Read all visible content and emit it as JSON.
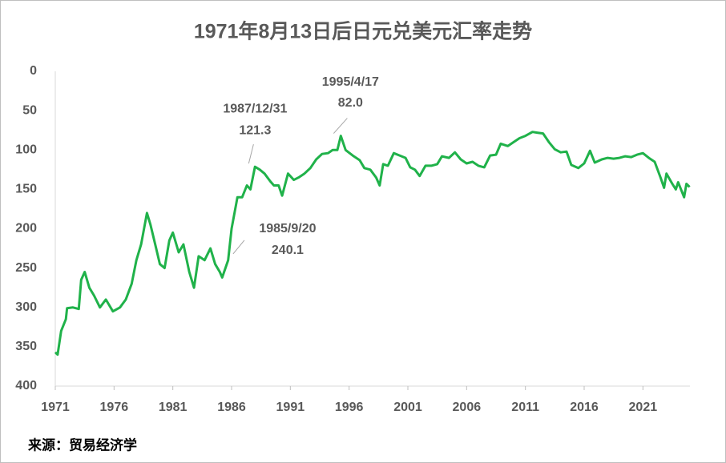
{
  "chart_data": {
    "type": "line",
    "title": "1971年8月13日后日元兑美元汇率走势",
    "source": "来源：贸易经济学",
    "xlim": [
      1971,
      2025
    ],
    "xticks": [
      1971,
      1976,
      1981,
      1986,
      1991,
      1996,
      2001,
      2006,
      2011,
      2016,
      2021
    ],
    "ylim": [
      0,
      400
    ],
    "y_reversed": true,
    "yticks": [
      0,
      50,
      100,
      150,
      200,
      250,
      300,
      350,
      400
    ],
    "grid": false,
    "series": [
      {
        "color": "#20b24a",
        "x": [
          1971.0,
          1971.2,
          1971.5,
          1971.9,
          1972.0,
          1972.5,
          1973.0,
          1973.2,
          1973.5,
          1973.9,
          1974.3,
          1974.8,
          1975.3,
          1975.9,
          1976.5,
          1977.0,
          1977.5,
          1977.9,
          1978.3,
          1978.8,
          1979.1,
          1979.5,
          1979.9,
          1980.3,
          1980.7,
          1981.0,
          1981.5,
          1981.9,
          1982.4,
          1982.8,
          1983.2,
          1983.7,
          1984.2,
          1984.6,
          1985.0,
          1985.2,
          1985.71,
          1986.0,
          1986.5,
          1986.9,
          1987.3,
          1987.6,
          1987.99,
          1988.4,
          1988.8,
          1989.3,
          1989.6,
          1990.0,
          1990.3,
          1990.8,
          1991.3,
          1991.7,
          1992.2,
          1992.7,
          1993.2,
          1993.7,
          1994.2,
          1994.6,
          1995.0,
          1995.29,
          1995.7,
          1996.3,
          1996.9,
          1997.3,
          1997.8,
          1998.3,
          1998.6,
          1998.9,
          1999.3,
          1999.8,
          2000.3,
          2000.8,
          2001.2,
          2001.6,
          2002.0,
          2002.5,
          2003.0,
          2003.5,
          2003.9,
          2004.5,
          2005.0,
          2005.5,
          2006.0,
          2006.5,
          2007.0,
          2007.5,
          2008.0,
          2008.5,
          2008.9,
          2009.5,
          2010.0,
          2010.5,
          2011.0,
          2011.6,
          2012.0,
          2012.5,
          2013.0,
          2013.5,
          2014.0,
          2014.5,
          2014.9,
          2015.5,
          2016.0,
          2016.5,
          2016.9,
          2017.5,
          2018.0,
          2018.5,
          2019.0,
          2019.5,
          2020.0,
          2020.5,
          2021.0,
          2021.5,
          2022.0,
          2022.5,
          2022.8,
          2023.0,
          2023.5,
          2023.8,
          2024.0,
          2024.5,
          2024.7,
          2024.97
        ],
        "values": [
          357,
          360,
          330,
          315,
          301,
          300,
          302,
          265,
          255,
          275,
          285,
          300,
          290,
          305,
          300,
          290,
          270,
          240,
          220,
          180,
          195,
          220,
          245,
          250,
          215,
          205,
          230,
          220,
          255,
          275,
          235,
          240,
          225,
          245,
          255,
          262,
          240.1,
          200,
          160,
          160,
          145,
          150,
          121.3,
          125,
          130,
          140,
          145,
          145,
          158,
          130,
          138,
          135,
          130,
          123,
          112,
          105,
          104,
          100,
          100,
          82.0,
          100,
          107,
          113,
          123,
          125,
          135,
          145,
          118,
          120,
          104,
          107,
          110,
          122,
          125,
          133,
          120,
          120,
          118,
          108,
          110,
          103,
          112,
          117,
          115,
          120,
          122,
          107,
          106,
          92,
          95,
          90,
          85,
          82,
          77,
          78,
          79,
          90,
          99,
          103,
          102,
          119,
          123,
          117,
          101,
          116,
          112,
          110,
          111,
          110,
          108,
          109,
          106,
          104,
          110,
          115,
          135,
          148,
          130,
          143,
          150,
          141,
          160,
          143,
          147
        ]
      }
    ],
    "annotations": [
      {
        "date": "1985/9/20",
        "value": 240.1,
        "label": "240.1"
      },
      {
        "date": "1987/12/31",
        "value": 121.3,
        "label": "121.3"
      },
      {
        "date": "1995/4/17",
        "value": 82.0,
        "label": "82.0"
      }
    ]
  }
}
